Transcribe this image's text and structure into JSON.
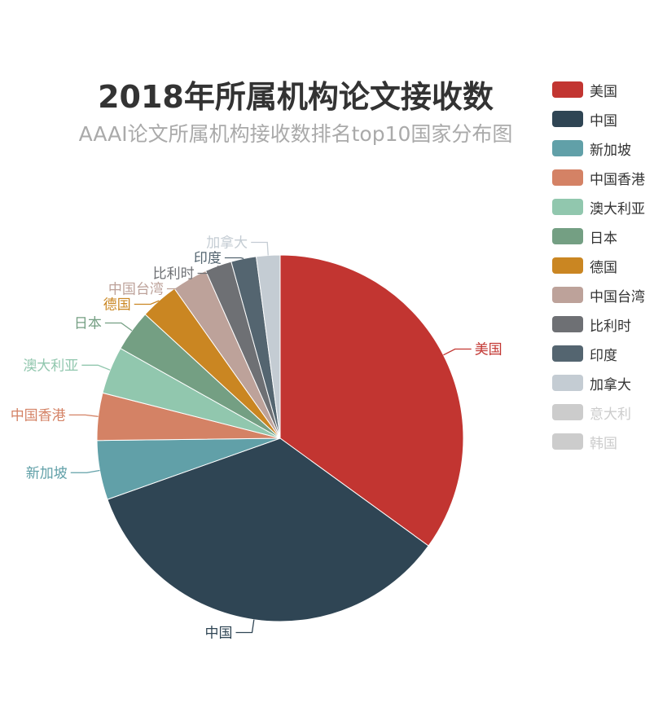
{
  "chart_data": {
    "type": "pie",
    "title": "2018年所属机构论文接收数",
    "subtitle": "AAAI论文所属机构接收数排名top10国家分布图",
    "slices": [
      {
        "name": "美国",
        "value": 268,
        "color": "#c23531"
      },
      {
        "name": "中国",
        "value": 265,
        "color": "#2f4554"
      },
      {
        "name": "新加坡",
        "value": 40,
        "color": "#61a0a8"
      },
      {
        "name": "中国香港",
        "value": 32,
        "color": "#d48265"
      },
      {
        "name": "澳大利亚",
        "value": 32,
        "color": "#91c7ae"
      },
      {
        "name": "日本",
        "value": 28,
        "color": "#749f83"
      },
      {
        "name": "德国",
        "value": 26,
        "color": "#ca8622"
      },
      {
        "name": "中国台湾",
        "value": 24,
        "color": "#bda29a"
      },
      {
        "name": "比利时",
        "value": 18,
        "color": "#6e7074"
      },
      {
        "name": "印度",
        "value": 17,
        "color": "#546570"
      },
      {
        "name": "加拿大",
        "value": 16,
        "color": "#c4ccd3"
      }
    ],
    "legend": {
      "placement": "right",
      "items": [
        {
          "name": "美国",
          "color": "#c23531",
          "active": true
        },
        {
          "name": "中国",
          "color": "#2f4554",
          "active": true
        },
        {
          "name": "新加坡",
          "color": "#61a0a8",
          "active": true
        },
        {
          "name": "中国香港",
          "color": "#d48265",
          "active": true
        },
        {
          "name": "澳大利亚",
          "color": "#91c7ae",
          "active": true
        },
        {
          "name": "日本",
          "color": "#749f83",
          "active": true
        },
        {
          "name": "德国",
          "color": "#ca8622",
          "active": true
        },
        {
          "name": "中国台湾",
          "color": "#bda29a",
          "active": true
        },
        {
          "name": "比利时",
          "color": "#6e7074",
          "active": true
        },
        {
          "name": "印度",
          "color": "#546570",
          "active": true
        },
        {
          "name": "加拿大",
          "color": "#c4ccd3",
          "active": true
        },
        {
          "name": "意大利",
          "color": "#cccccc",
          "active": false
        },
        {
          "name": "韩国",
          "color": "#cccccc",
          "active": false
        }
      ]
    }
  }
}
